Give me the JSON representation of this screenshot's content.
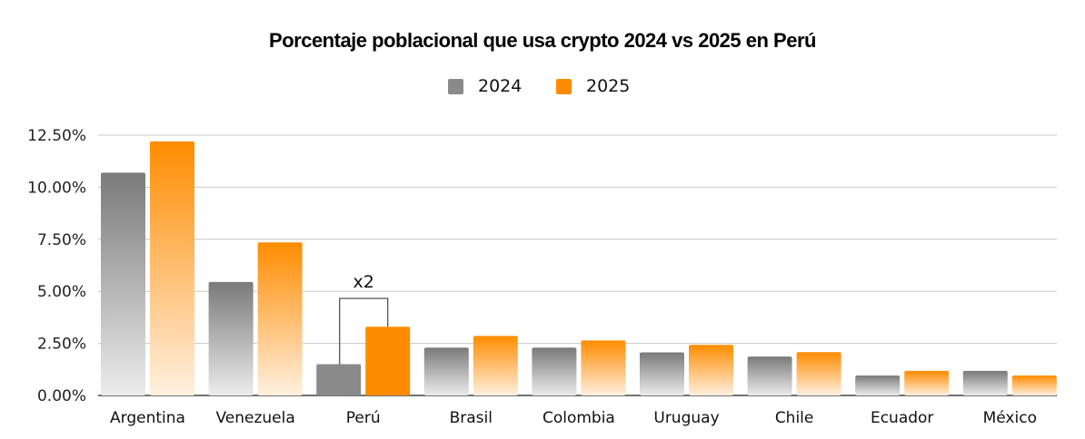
{
  "chart_data": {
    "type": "bar",
    "title": "Porcentaje poblacional que usa crypto 2024 vs 2025 en Perú",
    "xlabel": "",
    "ylabel": "",
    "categories": [
      "Argentina",
      "Venezuela",
      "Perú",
      "Brasil",
      "Colombia",
      "Uruguay",
      "Chile",
      "Ecuador",
      "México"
    ],
    "series": [
      {
        "name": "2024",
        "color": "#8a8a8a",
        "values": [
          10.7,
          5.45,
          1.5,
          2.3,
          2.3,
          2.07,
          1.87,
          0.96,
          1.18
        ]
      },
      {
        "name": "2025",
        "color": "#ff8c00",
        "values": [
          12.2,
          7.35,
          3.3,
          2.86,
          2.64,
          2.43,
          2.08,
          1.18,
          0.96
        ]
      }
    ],
    "ylim": [
      0,
      12.5
    ],
    "yticks": [
      "0.00%",
      "2.50%",
      "5.00%",
      "7.50%",
      "10.00%",
      "12.50%"
    ],
    "ytick_values": [
      0,
      2.5,
      5,
      7.5,
      10,
      12.5
    ],
    "grid": true,
    "legend": {
      "position": "top-center",
      "entries": [
        "2024",
        "2025"
      ]
    },
    "highlight_category": "Perú",
    "annotations": [
      {
        "text": "x2",
        "category": "Perú",
        "type": "bracket"
      }
    ]
  }
}
